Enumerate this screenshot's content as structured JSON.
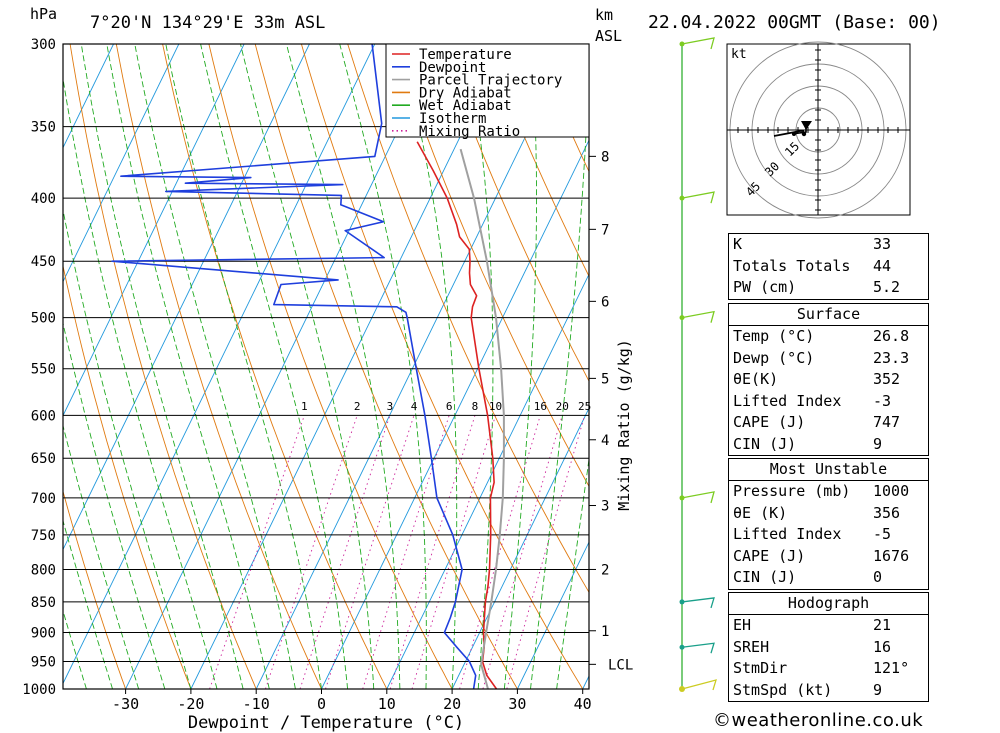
{
  "header": {
    "location": "7°20'N 134°29'E 33m ASL",
    "date": "22.04.2022 00GMT (Base: 00)",
    "hpa_unit": "hPa",
    "km_unit": "km",
    "asl_unit": "ASL"
  },
  "chart_data": {
    "type": "line",
    "xlabel": "Dewpoint / Temperature (°C)",
    "ylabel": "Mixing Ratio (g/kg)",
    "x_ticks": [
      -30,
      -20,
      -10,
      0,
      10,
      20,
      30,
      40
    ],
    "pressure_levels": [
      300,
      350,
      400,
      450,
      500,
      550,
      600,
      650,
      700,
      750,
      800,
      850,
      900,
      950,
      1000
    ],
    "height_ticks": [
      {
        "label": "8",
        "p": 370
      },
      {
        "label": "7",
        "p": 424
      },
      {
        "label": "6",
        "p": 485
      },
      {
        "label": "5",
        "p": 560
      },
      {
        "label": "4",
        "p": 628
      },
      {
        "label": "3",
        "p": 710
      },
      {
        "label": "2",
        "p": 800
      },
      {
        "label": "1",
        "p": 897
      },
      {
        "label": "LCL",
        "p": 955
      }
    ],
    "mixing_ratio_labels": [
      "1",
      "2",
      "3",
      "4",
      "6",
      "8",
      "10",
      "16",
      "20",
      "25"
    ],
    "mixing_ratio_values": [
      1,
      2,
      3,
      4,
      6,
      8,
      10,
      16,
      20,
      25
    ],
    "legend": [
      {
        "name": "Temperature",
        "color": "#dd2222",
        "dash": false
      },
      {
        "name": "Dewpoint",
        "color": "#1f3fdd",
        "dash": false
      },
      {
        "name": "Parcel Trajectory",
        "color": "#a0a0a0",
        "dash": false
      },
      {
        "name": "Dry Adiabat",
        "color": "#e07a10",
        "dash": false
      },
      {
        "name": "Wet Adiabat",
        "color": "#22aa22",
        "dash": false
      },
      {
        "name": "Isotherm",
        "color": "#2299dd",
        "dash": false
      },
      {
        "name": "Mixing Ratio",
        "color": "#cc2299",
        "dash": true
      }
    ],
    "series": [
      {
        "name": "Temperature",
        "color": "#dd2222",
        "points": [
          [
            1000,
            26.8
          ],
          [
            975,
            24.3
          ],
          [
            950,
            22.6
          ],
          [
            925,
            21.8
          ],
          [
            900,
            20.6
          ],
          [
            875,
            19.6
          ],
          [
            850,
            18.6
          ],
          [
            825,
            17.8
          ],
          [
            800,
            16.8
          ],
          [
            750,
            14.4
          ],
          [
            700,
            11.6
          ],
          [
            680,
            11.0
          ],
          [
            650,
            9.0
          ],
          [
            600,
            5.0
          ],
          [
            550,
            0.2
          ],
          [
            500,
            -4.8
          ],
          [
            490,
            -5.4
          ],
          [
            480,
            -5.6
          ],
          [
            470,
            -7.4
          ],
          [
            460,
            -8.4
          ],
          [
            450,
            -9.2
          ],
          [
            440,
            -10.2
          ],
          [
            430,
            -12.6
          ],
          [
            420,
            -14.0
          ],
          [
            400,
            -17.4
          ],
          [
            380,
            -21.6
          ],
          [
            360,
            -26.2
          ]
        ]
      },
      {
        "name": "Dewpoint",
        "color": "#1f3fdd",
        "points": [
          [
            1000,
            23.3
          ],
          [
            975,
            22.6
          ],
          [
            950,
            20.6
          ],
          [
            925,
            17.6
          ],
          [
            900,
            14.6
          ],
          [
            875,
            14.4
          ],
          [
            850,
            14.0
          ],
          [
            800,
            12.6
          ],
          [
            750,
            8.6
          ],
          [
            700,
            3.4
          ],
          [
            650,
            -0.4
          ],
          [
            600,
            -4.6
          ],
          [
            550,
            -9.4
          ],
          [
            500,
            -14.6
          ],
          [
            495,
            -15.2
          ],
          [
            490,
            -17.0
          ],
          [
            488,
            -36.0
          ],
          [
            470,
            -36.4
          ],
          [
            466,
            -28.0
          ],
          [
            450,
            -64.0
          ],
          [
            447,
            -22.6
          ],
          [
            425,
            -30.6
          ],
          [
            418,
            -25.4
          ],
          [
            405,
            -33.2
          ],
          [
            398,
            -33.8
          ],
          [
            395,
            -61.0
          ],
          [
            390,
            -34.4
          ],
          [
            389,
            -58.6
          ],
          [
            385,
            -49.0
          ],
          [
            384,
            -69.0
          ],
          [
            370,
            -31.6
          ],
          [
            348,
            -33.0
          ],
          [
            300,
            -40.4
          ]
        ]
      },
      {
        "name": "Parcel Trajectory",
        "color": "#a0a0a0",
        "points": [
          [
            1000,
            25.5
          ],
          [
            955,
            22.6
          ],
          [
            900,
            21.0
          ],
          [
            850,
            19.5
          ],
          [
            800,
            17.8
          ],
          [
            750,
            15.8
          ],
          [
            700,
            13.5
          ],
          [
            650,
            10.7
          ],
          [
            600,
            7.5
          ],
          [
            550,
            3.6
          ],
          [
            500,
            -1.0
          ],
          [
            450,
            -6.6
          ],
          [
            400,
            -13.3
          ],
          [
            365,
            -19.0
          ]
        ]
      }
    ]
  },
  "hodograph": {
    "unit": "kt",
    "ring_labels": [
      "15",
      "30",
      "45"
    ]
  },
  "indices": {
    "general": [
      {
        "label": "K",
        "value": "33"
      },
      {
        "label": "Totals Totals",
        "value": "44"
      },
      {
        "label": "PW (cm)",
        "value": "5.2"
      }
    ],
    "surface_title": "Surface",
    "surface": [
      {
        "label": "Temp (°C)",
        "value": "26.8"
      },
      {
        "label": "Dewp (°C)",
        "value": "23.3"
      },
      {
        "label": "θE(K)",
        "value": "352"
      },
      {
        "label": "Lifted Index",
        "value": "-3"
      },
      {
        "label": "CAPE (J)",
        "value": "747"
      },
      {
        "label": "CIN (J)",
        "value": "9"
      }
    ],
    "mu_title": "Most Unstable",
    "most_unstable": [
      {
        "label": "Pressure (mb)",
        "value": "1000"
      },
      {
        "label": "θE (K)",
        "value": "356"
      },
      {
        "label": "Lifted Index",
        "value": "-5"
      },
      {
        "label": "CAPE (J)",
        "value": "1676"
      },
      {
        "label": "CIN (J)",
        "value": "0"
      }
    ],
    "hodo_title": "Hodograph",
    "hodo": [
      {
        "label": "EH",
        "value": "21"
      },
      {
        "label": "SREH",
        "value": "16"
      },
      {
        "label": "StmDir",
        "value": "121°"
      },
      {
        "label": "StmSpd (kt)",
        "value": "9"
      }
    ]
  },
  "footer": "©weatheronline.co.uk"
}
